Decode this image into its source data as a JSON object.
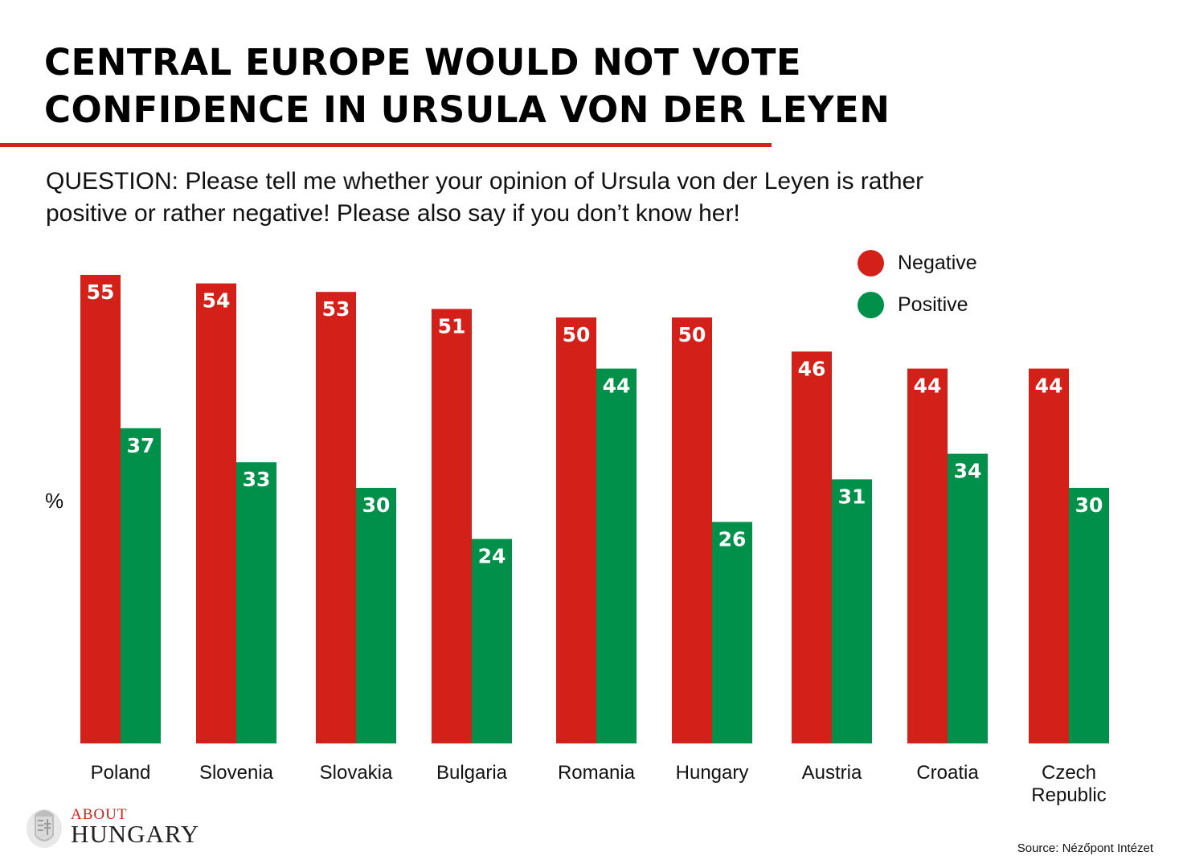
{
  "title": {
    "line1": "CENTRAL EUROPE WOULD NOT VOTE",
    "line2": "CONFIDENCE IN URSULA VON DER LEYEN"
  },
  "question": {
    "line1": "QUESTION: Please tell me whether your opinion of Ursula von der Leyen is rather",
    "line2": "positive or rather negative! Please also say if you don’t know her!"
  },
  "unit_label": "%",
  "legend": [
    {
      "label": "Negative",
      "color": "#d3211a"
    },
    {
      "label": "Positive",
      "color": "#00904a"
    }
  ],
  "logo": {
    "about": "ABOUT",
    "hungary": "HUNGARY"
  },
  "source": "Source: Nézőpont Intézet",
  "colors": {
    "negative": "#d3211a",
    "positive": "#00904a",
    "accent": "#d3211a"
  },
  "chart_data": {
    "type": "bar",
    "title": "CENTRAL EUROPE WOULD NOT VOTE CONFIDENCE IN URSULA VON DER LEYEN",
    "ylabel": "%",
    "xlabel": "",
    "ylim": [
      0,
      55
    ],
    "grid": false,
    "legend_position": "top-right",
    "categories": [
      [
        "Poland"
      ],
      [
        "Slovenia"
      ],
      [
        "Slovakia"
      ],
      [
        "Bulgaria"
      ],
      [
        "Romania"
      ],
      [
        "Hungary"
      ],
      [
        "Austria"
      ],
      [
        "Croatia"
      ],
      [
        "Czech",
        "Republic"
      ]
    ],
    "series": [
      {
        "name": "Negative",
        "color": "#d3211a",
        "values": [
          55,
          54,
          53,
          51,
          50,
          50,
          46,
          44,
          44
        ]
      },
      {
        "name": "Positive",
        "color": "#00904a",
        "values": [
          37,
          33,
          30,
          24,
          44,
          26,
          31,
          34,
          30
        ]
      }
    ]
  }
}
